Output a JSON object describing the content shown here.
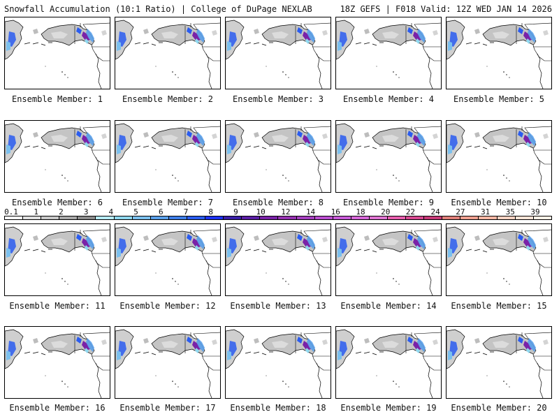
{
  "header": {
    "left": "Snowfall Accumulation (10:1 Ratio) | College of DuPage NEXLAB",
    "right": "18Z GEFS | F018 Valid: 12Z WED JAN 14 2026"
  },
  "members": [
    {
      "label": "Ensemble Member: 1"
    },
    {
      "label": "Ensemble Member: 2"
    },
    {
      "label": "Ensemble Member: 3"
    },
    {
      "label": "Ensemble Member: 4"
    },
    {
      "label": "Ensemble Member: 5"
    },
    {
      "label": "Ensemble Member: 6"
    },
    {
      "label": "Ensemble Member: 7"
    },
    {
      "label": "Ensemble Member: 8"
    },
    {
      "label": "Ensemble Member: 9"
    },
    {
      "label": "Ensemble Member: 10"
    },
    {
      "label": "Ensemble Member: 11"
    },
    {
      "label": "Ensemble Member: 12"
    },
    {
      "label": "Ensemble Member: 13"
    },
    {
      "label": "Ensemble Member: 14"
    },
    {
      "label": "Ensemble Member: 15"
    },
    {
      "label": "Ensemble Member: 16"
    },
    {
      "label": "Ensemble Member: 17"
    },
    {
      "label": "Ensemble Member: 18"
    },
    {
      "label": "Ensemble Member: 19"
    },
    {
      "label": "Ensemble Member: 20"
    }
  ],
  "legend": {
    "labels": [
      "0.1",
      "1",
      "2",
      "3",
      "4",
      "5",
      "6",
      "7",
      "8",
      "9",
      "10",
      "12",
      "14",
      "16",
      "18",
      "20",
      "22",
      "24",
      "27",
      "31",
      "35",
      "39"
    ],
    "colors": [
      "#ffffff",
      "#e0e0e0",
      "#c8c8c8",
      "#a8a8a8",
      "#8c8c8c",
      "#b7ecf7",
      "#8fd8ef",
      "#7bc0ee",
      "#5aa0ea",
      "#3e7ee8",
      "#2a5cf0",
      "#1c32f4",
      "#3a1ea8",
      "#5a1ea6",
      "#7a22a8",
      "#9632b2",
      "#a640c0",
      "#ba4ed0",
      "#c85ad8",
      "#d667d8",
      "#e074d2",
      "#e85eae",
      "#d84890",
      "#c83a78",
      "#e07f79",
      "#f0a090",
      "#f7b7a4",
      "#fbd2c2",
      "#fde4d6",
      "#fff1e6"
    ]
  },
  "map_colors": {
    "land_gray": "#bdbdbd",
    "snow_blue": "#2a5cf0",
    "snow_purple": "#7a22a8",
    "snow_cyan": "#8fd8ef"
  }
}
